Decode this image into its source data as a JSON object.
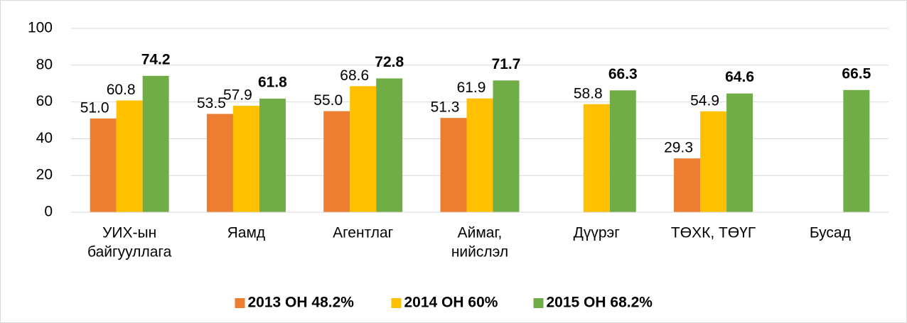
{
  "chart_data": {
    "type": "bar",
    "categories": [
      [
        "УИХ-ын",
        "байгууллага"
      ],
      [
        "Яамд"
      ],
      [
        "Агентлаг"
      ],
      [
        "Аймаг,",
        "нийслэл"
      ],
      [
        "Дүүрэг"
      ],
      [
        "ТӨХК, ТӨҮГ"
      ],
      [
        "Бусад"
      ]
    ],
    "series": [
      {
        "name": "2013 ОН 48.2%",
        "color": "#ED7D31",
        "bold": false,
        "values": [
          51.0,
          53.5,
          55.0,
          51.3,
          null,
          29.3,
          null
        ],
        "value_labels": [
          "51.0",
          "53.5",
          "55.0",
          "51.3",
          null,
          "29.3",
          null
        ]
      },
      {
        "name": "2014 ОН 60%",
        "color": "#FFC000",
        "bold": false,
        "values": [
          60.8,
          57.9,
          68.6,
          61.9,
          58.8,
          54.9,
          null
        ],
        "value_labels": [
          "60.8",
          "57.9",
          "68.6",
          "61.9",
          "58.8",
          "54.9",
          null
        ]
      },
      {
        "name": "2015 ОН 68.2%",
        "color": "#70AD47",
        "bold": true,
        "values": [
          74.2,
          61.8,
          72.8,
          71.7,
          66.3,
          64.6,
          66.5
        ],
        "value_labels": [
          "74.2",
          "61.8",
          "72.8",
          "71.7",
          "66.3",
          "64.6",
          "66.5"
        ]
      }
    ],
    "ylim": [
      0,
      100
    ],
    "yticks": [
      0,
      20,
      40,
      60,
      80,
      100
    ],
    "grid": true,
    "legend": "bottom"
  }
}
